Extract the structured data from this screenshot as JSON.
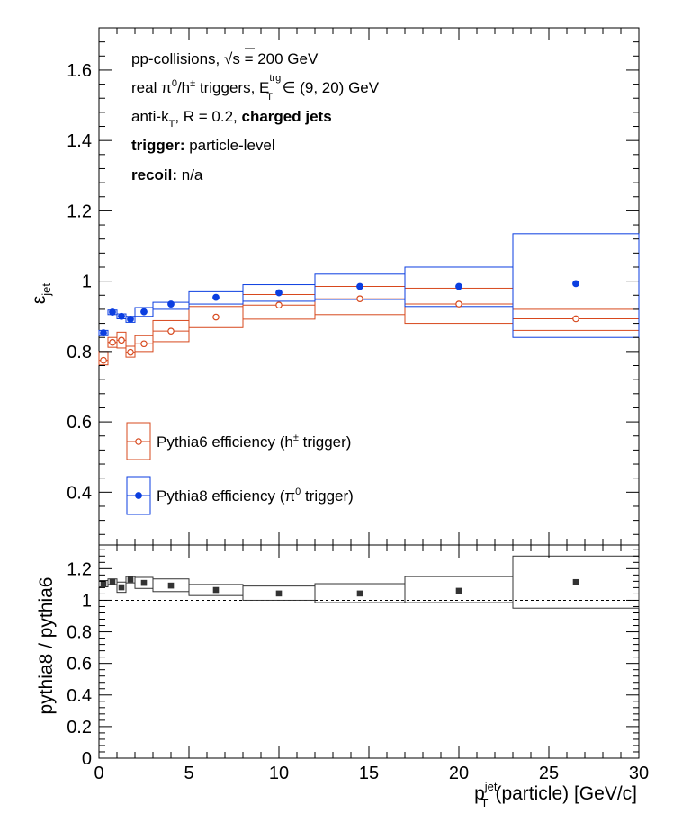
{
  "chart_data": [
    {
      "type": "scatter",
      "panel": "efficiency",
      "ylabel_main": "ε",
      "ylabel_sub": "jet",
      "xlim": [
        0,
        30
      ],
      "ylim": [
        0.25,
        1.72
      ],
      "yticks": [
        "0.4",
        "0.6",
        "0.8",
        "1",
        "1.2",
        "1.4",
        "1.6"
      ],
      "annotations": {
        "line1": {
          "a": "pp-collisions, ",
          "b": "√s",
          "c": " = 200 GeV"
        },
        "line2": {
          "a": "real π",
          "a_sup": "0",
          "b": "/h",
          "b_sup": "±",
          "c": " triggers, E",
          "c_sup": "trg",
          "c_sub": "T",
          "d": " ∈ (9, 20) GeV"
        },
        "line3": {
          "a": "anti-k",
          "a_sub": "T",
          "b": ", R = 0.2, ",
          "c": "charged jets"
        },
        "line4": {
          "a": "trigger:",
          "b": " particle-level"
        },
        "line5": {
          "a": "recoil:",
          "b": " n/a"
        }
      },
      "legend": [
        {
          "a": "Pythia6 efficiency (h",
          "sup": "±",
          "b": " trigger)"
        },
        {
          "a": "Pythia8 efficiency (π",
          "sup": "0",
          "b": " trigger)"
        }
      ],
      "series": [
        {
          "name": "Pythia6 efficiency (h± trigger)",
          "color": "#d7481d",
          "marker": "open-circle",
          "x": [
            0.25,
            0.75,
            1.25,
            1.75,
            2.5,
            4.0,
            6.5,
            10.0,
            14.5,
            20.0,
            26.5
          ],
          "y": [
            0.775,
            0.826,
            0.832,
            0.798,
            0.822,
            0.858,
            0.898,
            0.932,
            0.95,
            0.935,
            0.893
          ],
          "box_x": [
            [
              0.0,
              0.5
            ],
            [
              0.5,
              1.0
            ],
            [
              1.0,
              1.5
            ],
            [
              1.5,
              2.0
            ],
            [
              2.0,
              3.0
            ],
            [
              3.0,
              5.0
            ],
            [
              5.0,
              8.0
            ],
            [
              8.0,
              12.0
            ],
            [
              12.0,
              17.0
            ],
            [
              17.0,
              23.0
            ],
            [
              23.0,
              30.0
            ]
          ],
          "box_y": [
            [
              0.762,
              0.8
            ],
            [
              0.812,
              0.84
            ],
            [
              0.81,
              0.855
            ],
            [
              0.784,
              0.815
            ],
            [
              0.8,
              0.845
            ],
            [
              0.828,
              0.888
            ],
            [
              0.868,
              0.928
            ],
            [
              0.892,
              0.962
            ],
            [
              0.905,
              0.985
            ],
            [
              0.88,
              0.98
            ],
            [
              0.86,
              0.92
            ]
          ]
        },
        {
          "name": "Pythia8 efficiency (π0 trigger)",
          "color": "#0b3ee0",
          "marker": "filled-circle",
          "x": [
            0.25,
            0.75,
            1.25,
            1.75,
            2.5,
            4.0,
            6.5,
            10.0,
            14.5,
            20.0,
            26.5
          ],
          "y": [
            0.853,
            0.912,
            0.9,
            0.892,
            0.913,
            0.935,
            0.954,
            0.967,
            0.985,
            0.985,
            0.993
          ],
          "box_x": [
            [
              0.0,
              0.5
            ],
            [
              0.5,
              1.0
            ],
            [
              1.0,
              1.5
            ],
            [
              1.5,
              2.0
            ],
            [
              2.0,
              3.0
            ],
            [
              3.0,
              5.0
            ],
            [
              5.0,
              8.0
            ],
            [
              8.0,
              12.0
            ],
            [
              12.0,
              17.0
            ],
            [
              17.0,
              23.0
            ],
            [
              23.0,
              30.0
            ]
          ],
          "box_y": [
            [
              0.845,
              0.86
            ],
            [
              0.905,
              0.918
            ],
            [
              0.893,
              0.907
            ],
            [
              0.883,
              0.9
            ],
            [
              0.9,
              0.925
            ],
            [
              0.92,
              0.94
            ],
            [
              0.935,
              0.97
            ],
            [
              0.943,
              0.99
            ],
            [
              0.948,
              1.02
            ],
            [
              0.928,
              1.04
            ],
            [
              0.84,
              1.135
            ]
          ]
        }
      ]
    },
    {
      "type": "scatter",
      "panel": "ratio",
      "ylabel": "pythia8 / pythia6",
      "xlabel_main": "p",
      "xlabel_sup": "jet",
      "xlabel_sub": "T",
      "xlabel_rest": "(particle) [GeV/c]",
      "xlim": [
        0,
        30
      ],
      "ylim": [
        0,
        1.35
      ],
      "yticks": [
        "0",
        "0.2",
        "0.4",
        "0.6",
        "0.8",
        "1",
        "1.2"
      ],
      "xticks": [
        "0",
        "5",
        "10",
        "15",
        "20",
        "25",
        "30"
      ],
      "reference_line": 1.0,
      "series": [
        {
          "name": "",
          "color": "#333333",
          "marker": "filled-square",
          "x": [
            0.25,
            0.75,
            1.25,
            1.75,
            2.5,
            4.0,
            6.5,
            10.0,
            14.5,
            20.0,
            26.5
          ],
          "y": [
            1.105,
            1.118,
            1.082,
            1.131,
            1.11,
            1.093,
            1.065,
            1.043,
            1.043,
            1.06,
            1.115
          ],
          "box_x": [
            [
              0.0,
              0.5
            ],
            [
              0.5,
              1.0
            ],
            [
              1.0,
              1.5
            ],
            [
              1.5,
              2.0
            ],
            [
              2.0,
              3.0
            ],
            [
              3.0,
              5.0
            ],
            [
              5.0,
              8.0
            ],
            [
              8.0,
              12.0
            ],
            [
              12.0,
              17.0
            ],
            [
              17.0,
              23.0
            ],
            [
              23.0,
              30.0
            ]
          ],
          "box_y": [
            [
              1.085,
              1.125
            ],
            [
              1.1,
              1.135
            ],
            [
              1.05,
              1.115
            ],
            [
              1.11,
              1.15
            ],
            [
              1.075,
              1.145
            ],
            [
              1.055,
              1.135
            ],
            [
              1.03,
              1.1
            ],
            [
              1.0,
              1.09
            ],
            [
              0.985,
              1.105
            ],
            [
              0.985,
              1.15
            ],
            [
              0.95,
              1.28
            ]
          ]
        }
      ]
    }
  ]
}
